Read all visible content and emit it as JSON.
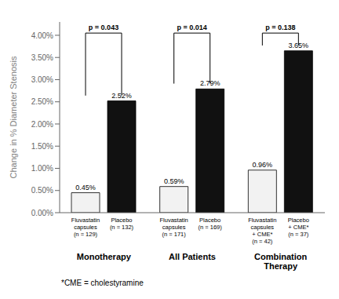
{
  "chart_data": {
    "type": "bar",
    "ylabel": "Change in % Diameter Stenosis",
    "categories": [
      "Monotherapy",
      "All Patients",
      "Combination\nTherapy"
    ],
    "series": [
      {
        "values": [
          0.45,
          0.59,
          0.96
        ],
        "value_labels": [
          "0.45%",
          "0.59%",
          "0.96%"
        ],
        "labels": [
          "Fluvastatin\ncapsules\n(n = 129)",
          "Fluvastatin\ncapsules\n(n = 171)",
          "Fluvastatin\ncapsules\n+ CME*\n(n = 42)"
        ],
        "color": "#f2f2f2",
        "edgecolor": "#000000"
      },
      {
        "values": [
          2.52,
          2.79,
          3.65
        ],
        "value_labels": [
          "2.52%",
          "2.79%",
          "3.65%"
        ],
        "labels": [
          "Placebo\n(n = 132)",
          "Placebo\n(n = 169)",
          "Placebo\n+ CME*\n(n = 37)"
        ],
        "color": "#111111",
        "edgecolor": "#000000"
      }
    ],
    "p_values": [
      "p = 0.043",
      "p = 0.014",
      "p = 0.138"
    ],
    "footnote": "*CME = cholestyramine",
    "ylim": [
      0,
      4.3
    ],
    "yticks": [
      {
        "value": 0.0,
        "label": "0.00%"
      },
      {
        "value": 0.5,
        "label": "0.50%"
      },
      {
        "value": 1.0,
        "label": "1.00%"
      },
      {
        "value": 1.5,
        "label": "1.50%"
      },
      {
        "value": 2.0,
        "label": "2.00%"
      },
      {
        "value": 2.5,
        "label": "2.50%"
      },
      {
        "value": 3.0,
        "label": "3.00%"
      },
      {
        "value": 3.5,
        "label": "3.50%"
      },
      {
        "value": 4.0,
        "label": "4.00%"
      }
    ],
    "data_labels": true,
    "grid": false
  }
}
